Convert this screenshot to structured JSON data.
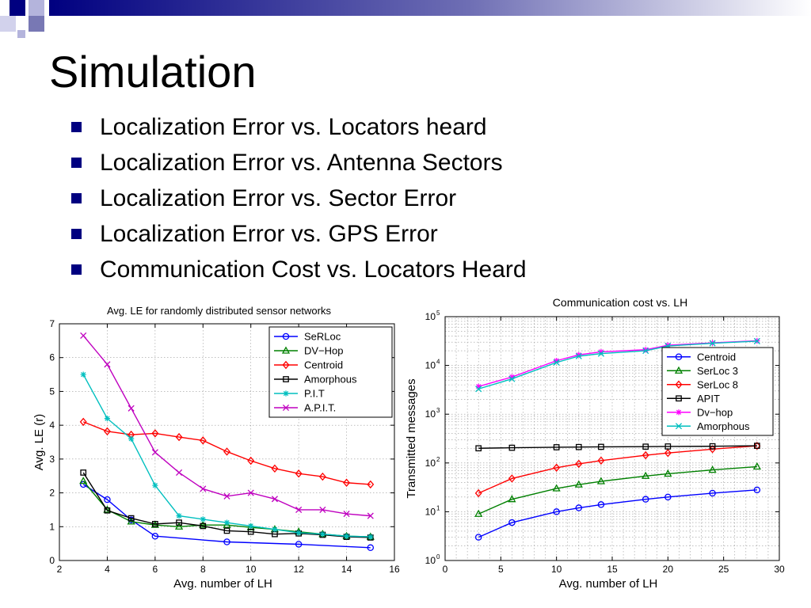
{
  "slide": {
    "title": "Simulation",
    "bullets": [
      "Localization Error vs. Locators heard",
      "Localization Error vs. Antenna Sectors",
      "Localization Error vs. Sector Error",
      "Localization Error vs. GPS Error",
      "Communication Cost vs. Locators Heard"
    ],
    "accent_color": "#000080"
  },
  "chart_data": [
    {
      "type": "line",
      "title": "Avg. LE for randomly distributed sensor networks",
      "xlabel": "Avg. number of LH",
      "ylabel": "Avg. LE (r)",
      "xlim": [
        2,
        16
      ],
      "ylim": [
        0,
        7
      ],
      "xticks": [
        2,
        4,
        6,
        8,
        10,
        12,
        14,
        16
      ],
      "yticks": [
        0,
        1,
        2,
        3,
        4,
        5,
        6,
        7
      ],
      "grid": true,
      "legend": "top-right",
      "series": [
        {
          "name": "SeRLoc",
          "color": "#0000ff",
          "marker": "circle",
          "x": [
            3,
            4,
            5,
            6,
            9,
            12,
            15
          ],
          "y": [
            2.25,
            1.8,
            1.2,
            0.72,
            0.55,
            0.48,
            0.38
          ]
        },
        {
          "name": "DV−Hop",
          "color": "#008000",
          "marker": "triangle",
          "x": [
            3,
            4,
            5,
            6,
            7,
            8,
            9,
            10,
            11,
            12,
            13,
            14,
            15
          ],
          "y": [
            2.35,
            1.5,
            1.15,
            1.05,
            1.0,
            1.05,
            1.05,
            0.98,
            0.92,
            0.85,
            0.78,
            0.72,
            0.7
          ]
        },
        {
          "name": "Centroid",
          "color": "#ff0000",
          "marker": "diamond",
          "x": [
            3,
            4,
            5,
            6,
            7,
            8,
            9,
            10,
            11,
            12,
            13,
            14,
            15
          ],
          "y": [
            4.1,
            3.82,
            3.72,
            3.76,
            3.65,
            3.55,
            3.22,
            2.95,
            2.72,
            2.57,
            2.48,
            2.3,
            2.25
          ]
        },
        {
          "name": "Amorphous",
          "color": "#000000",
          "marker": "square",
          "x": [
            3,
            4,
            5,
            6,
            7,
            8,
            9,
            10,
            11,
            12,
            13,
            14,
            15
          ],
          "y": [
            2.6,
            1.48,
            1.25,
            1.08,
            1.12,
            1.02,
            0.88,
            0.85,
            0.78,
            0.8,
            0.76,
            0.7,
            0.68
          ]
        },
        {
          "name": "P.I.T",
          "color": "#00bfbf",
          "marker": "star",
          "x": [
            3,
            4,
            5,
            6,
            7,
            8,
            9,
            10,
            11,
            12,
            13,
            14,
            15
          ],
          "y": [
            5.5,
            4.2,
            3.6,
            2.22,
            1.32,
            1.22,
            1.12,
            1.02,
            0.92,
            0.82,
            0.78,
            0.72,
            0.7
          ]
        },
        {
          "name": "A.P.I.T.",
          "color": "#bf00bf",
          "marker": "x",
          "x": [
            3,
            4,
            5,
            6,
            7,
            8,
            9,
            10,
            11,
            12,
            13,
            14,
            15
          ],
          "y": [
            6.65,
            5.8,
            4.5,
            3.2,
            2.6,
            2.12,
            1.9,
            2.0,
            1.82,
            1.5,
            1.5,
            1.38,
            1.32
          ]
        }
      ]
    },
    {
      "type": "line",
      "title": "Communication cost vs. LH",
      "xlabel": "Avg. number of LH",
      "ylabel": "Transmitted messages",
      "xlim": [
        0,
        30
      ],
      "ylim": [
        1,
        100000
      ],
      "yscale": "log",
      "xticks": [
        0,
        5,
        10,
        15,
        20,
        25,
        30
      ],
      "yticks": [
        {
          "base": "10",
          "exp": "0"
        },
        {
          "base": "10",
          "exp": "1"
        },
        {
          "base": "10",
          "exp": "2"
        },
        {
          "base": "10",
          "exp": "3"
        },
        {
          "base": "10",
          "exp": "4"
        },
        {
          "base": "10",
          "exp": "5"
        }
      ],
      "grid": true,
      "legend": "right",
      "series": [
        {
          "name": "Centroid",
          "color": "#0000ff",
          "marker": "circle",
          "x": [
            3,
            6,
            10,
            12,
            14,
            18,
            20,
            24,
            28
          ],
          "y": [
            3,
            6,
            10,
            12,
            14,
            18,
            20,
            24,
            28
          ]
        },
        {
          "name": "SerLoc 3",
          "color": "#008000",
          "marker": "triangle",
          "x": [
            3,
            6,
            10,
            12,
            14,
            18,
            20,
            24,
            28
          ],
          "y": [
            9,
            18,
            30,
            36,
            42,
            54,
            60,
            72,
            84
          ]
        },
        {
          "name": "SerLoc 8",
          "color": "#ff0000",
          "marker": "diamond",
          "x": [
            3,
            6,
            10,
            12,
            14,
            18,
            20,
            24,
            28
          ],
          "y": [
            24,
            48,
            80,
            96,
            112,
            144,
            160,
            192,
            224
          ]
        },
        {
          "name": "APIT",
          "color": "#000000",
          "marker": "square",
          "x": [
            3,
            6,
            10,
            12,
            14,
            18,
            20,
            24,
            28
          ],
          "y": [
            200,
            205,
            210,
            212,
            214,
            216,
            218,
            220,
            225
          ]
        },
        {
          "name": "Dv−hop",
          "color": "#ff00ff",
          "marker": "star",
          "x": [
            3,
            6,
            10,
            12,
            14,
            18,
            20,
            24,
            28
          ],
          "y": [
            3700,
            5800,
            12500,
            16500,
            19000,
            21000,
            26000,
            29000,
            32000
          ]
        },
        {
          "name": "Amorphous",
          "color": "#00bfbf",
          "marker": "x",
          "x": [
            3,
            6,
            10,
            12,
            14,
            18,
            20,
            24,
            28
          ],
          "y": [
            3300,
            5300,
            11500,
            15500,
            17500,
            20000,
            25000,
            28500,
            31500
          ]
        }
      ]
    }
  ]
}
